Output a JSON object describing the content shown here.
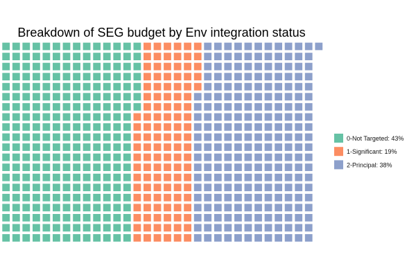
{
  "chart_data": {
    "type": "waffle",
    "title": "Breakdown of SEG budget by Env integration status",
    "grid": {
      "rows": 20,
      "columns": 31,
      "fill_order": "column-major, top-to-bottom"
    },
    "series": [
      {
        "name": "0-Not Targeted",
        "label": "0-Not Targeted: 43%",
        "percent": 43,
        "squares": 267,
        "color": "#66c2a5"
      },
      {
        "name": "1-Significant",
        "label": "1-Significant: 19%",
        "percent": 19,
        "squares": 118,
        "color": "#fc8d62"
      },
      {
        "name": "2-Principal",
        "label": "2-Principal: 38%",
        "percent": 38,
        "squares": 236,
        "color": "#8da0cb"
      }
    ],
    "legend_position": "right"
  }
}
